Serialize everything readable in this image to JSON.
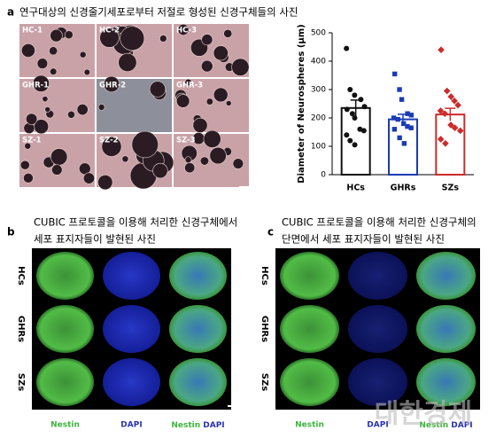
{
  "panel_a": {
    "label": "a",
    "title": "연구대상의 신경줄기세포로부터 저절로 형성된 신경구체들의 사진",
    "images": [
      "HC-1",
      "HC-2",
      "HC-3",
      "GHR-1",
      "GHR-2",
      "GHR-3",
      "SZ-1",
      "SZ-2",
      "SZ-3"
    ]
  },
  "chart_data": {
    "type": "bar",
    "ylabel": "Diameter of  Neurospheres (μm)",
    "categories": [
      "HCs",
      "GHRs",
      "SZs"
    ],
    "values": [
      235,
      195,
      212
    ],
    "errors": [
      28,
      18,
      22
    ],
    "colors": [
      "#111111",
      "#1a3bb5",
      "#cc2b2b"
    ],
    "points": [
      [
        445,
        300,
        280,
        265,
        240,
        230,
        215,
        200,
        160,
        155,
        140,
        120,
        105
      ],
      [
        355,
        300,
        265,
        215,
        210,
        200,
        195,
        180,
        170,
        165,
        160,
        130,
        110
      ],
      [
        440,
        295,
        275,
        260,
        245,
        225,
        215,
        175,
        165,
        155,
        125,
        110
      ]
    ],
    "ylim": [
      0,
      500
    ],
    "yticks": [
      0,
      100,
      200,
      300,
      400,
      500
    ]
  },
  "panel_b": {
    "label": "b",
    "title_lines": [
      "CUBIC 프로토콜을 이용해 처리한 신경구체에서",
      "세포 표지자들이 발현된 사진"
    ],
    "rows": [
      "HCs",
      "GHRs",
      "SZs"
    ],
    "columns": [
      "Nestin",
      "DAPI"
    ]
  },
  "panel_c": {
    "label": "c",
    "title_lines": [
      "CUBIC 프로토콜을 이용해 처리한 신경구체의",
      "단면에서 세포 표지자들이 발현된 사진"
    ],
    "rows": [
      "HCs",
      "GHRs",
      "SZs"
    ],
    "columns": [
      "Nestin",
      "DAPI"
    ]
  },
  "watermark": "대한경제"
}
